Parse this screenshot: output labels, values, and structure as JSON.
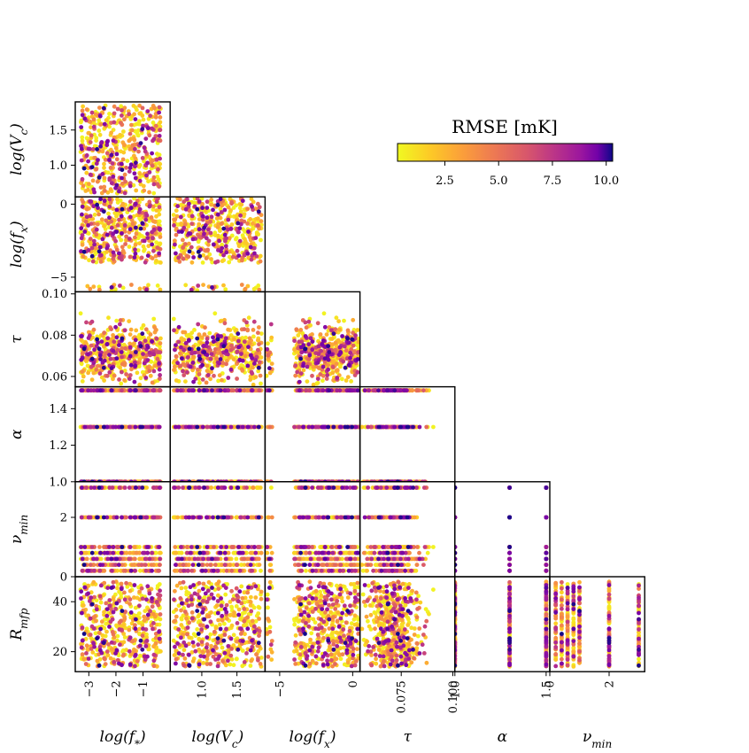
{
  "chart_data": {
    "type": "scatter",
    "subtype": "corner-plot",
    "colorbar": {
      "title": "RMSE [mK]",
      "colormap": "plasma_r",
      "range": [
        0.3,
        10.3
      ],
      "ticks": [
        2.5,
        5.0,
        7.5,
        10.0
      ],
      "tick_labels": [
        "2.5",
        "5.0",
        "7.5",
        "10.0"
      ],
      "orientation": "horizontal",
      "placement": "top-right"
    },
    "parameters": [
      {
        "key": "fstar",
        "label_main": "log(f",
        "label_sub": "*",
        "label_tail": ")",
        "range": [
          -3.5,
          0.0
        ],
        "ticks": [
          -3,
          -2,
          -1
        ],
        "tick_labels": [
          "−3",
          "−2",
          "−1"
        ]
      },
      {
        "key": "vc",
        "label_main": "log(V",
        "label_sub": "c",
        "label_tail": ")",
        "range": [
          0.55,
          1.9
        ],
        "ticks": [
          1.0,
          1.5
        ],
        "tick_labels": [
          "1.0",
          "1.5"
        ]
      },
      {
        "key": "fx",
        "label_main": "log(f",
        "label_sub": "x",
        "label_tail": ")",
        "range": [
          -6.0,
          0.5
        ],
        "ticks": [
          -5,
          0
        ],
        "tick_labels": [
          "−5",
          "0"
        ]
      },
      {
        "key": "tau",
        "label_main": "τ",
        "label_sub": "",
        "label_tail": "",
        "range": [
          0.055,
          0.101
        ],
        "ticks": [
          0.06,
          0.08,
          0.1
        ],
        "tick_labels": [
          "0.06",
          "0.08",
          "0.10"
        ],
        "x_ticks": [
          0.075,
          0.1
        ],
        "x_tick_labels": [
          "0.075",
          "0.100"
        ]
      },
      {
        "key": "alpha",
        "label_main": "α",
        "label_sub": "",
        "label_tail": "",
        "range": [
          1.0,
          1.52
        ],
        "ticks": [
          1.0,
          1.2,
          1.4
        ],
        "tick_labels": [
          "1.0",
          "1.2",
          "1.4"
        ],
        "x_ticks": [
          1.0,
          1.5
        ],
        "x_tick_labels": [
          "1.0",
          "1.5"
        ],
        "levels": [
          1.0,
          1.3,
          1.5
        ]
      },
      {
        "key": "numin",
        "label_main": "ν",
        "label_sub": "min",
        "label_tail": "",
        "range": [
          0.0,
          3.2
        ],
        "ticks": [
          0,
          2
        ],
        "tick_labels": [
          "0",
          "2"
        ],
        "levels": [
          0.2,
          0.4,
          0.6,
          0.8,
          1.0,
          2.0,
          3.0
        ]
      },
      {
        "key": "rmfp",
        "label_main": "R",
        "label_sub": "mfp",
        "label_tail": "",
        "range": [
          12,
          50
        ],
        "ticks": [
          20,
          40
        ],
        "tick_labels": [
          "20",
          "40"
        ]
      }
    ],
    "n_samples": 500,
    "grid": false
  }
}
